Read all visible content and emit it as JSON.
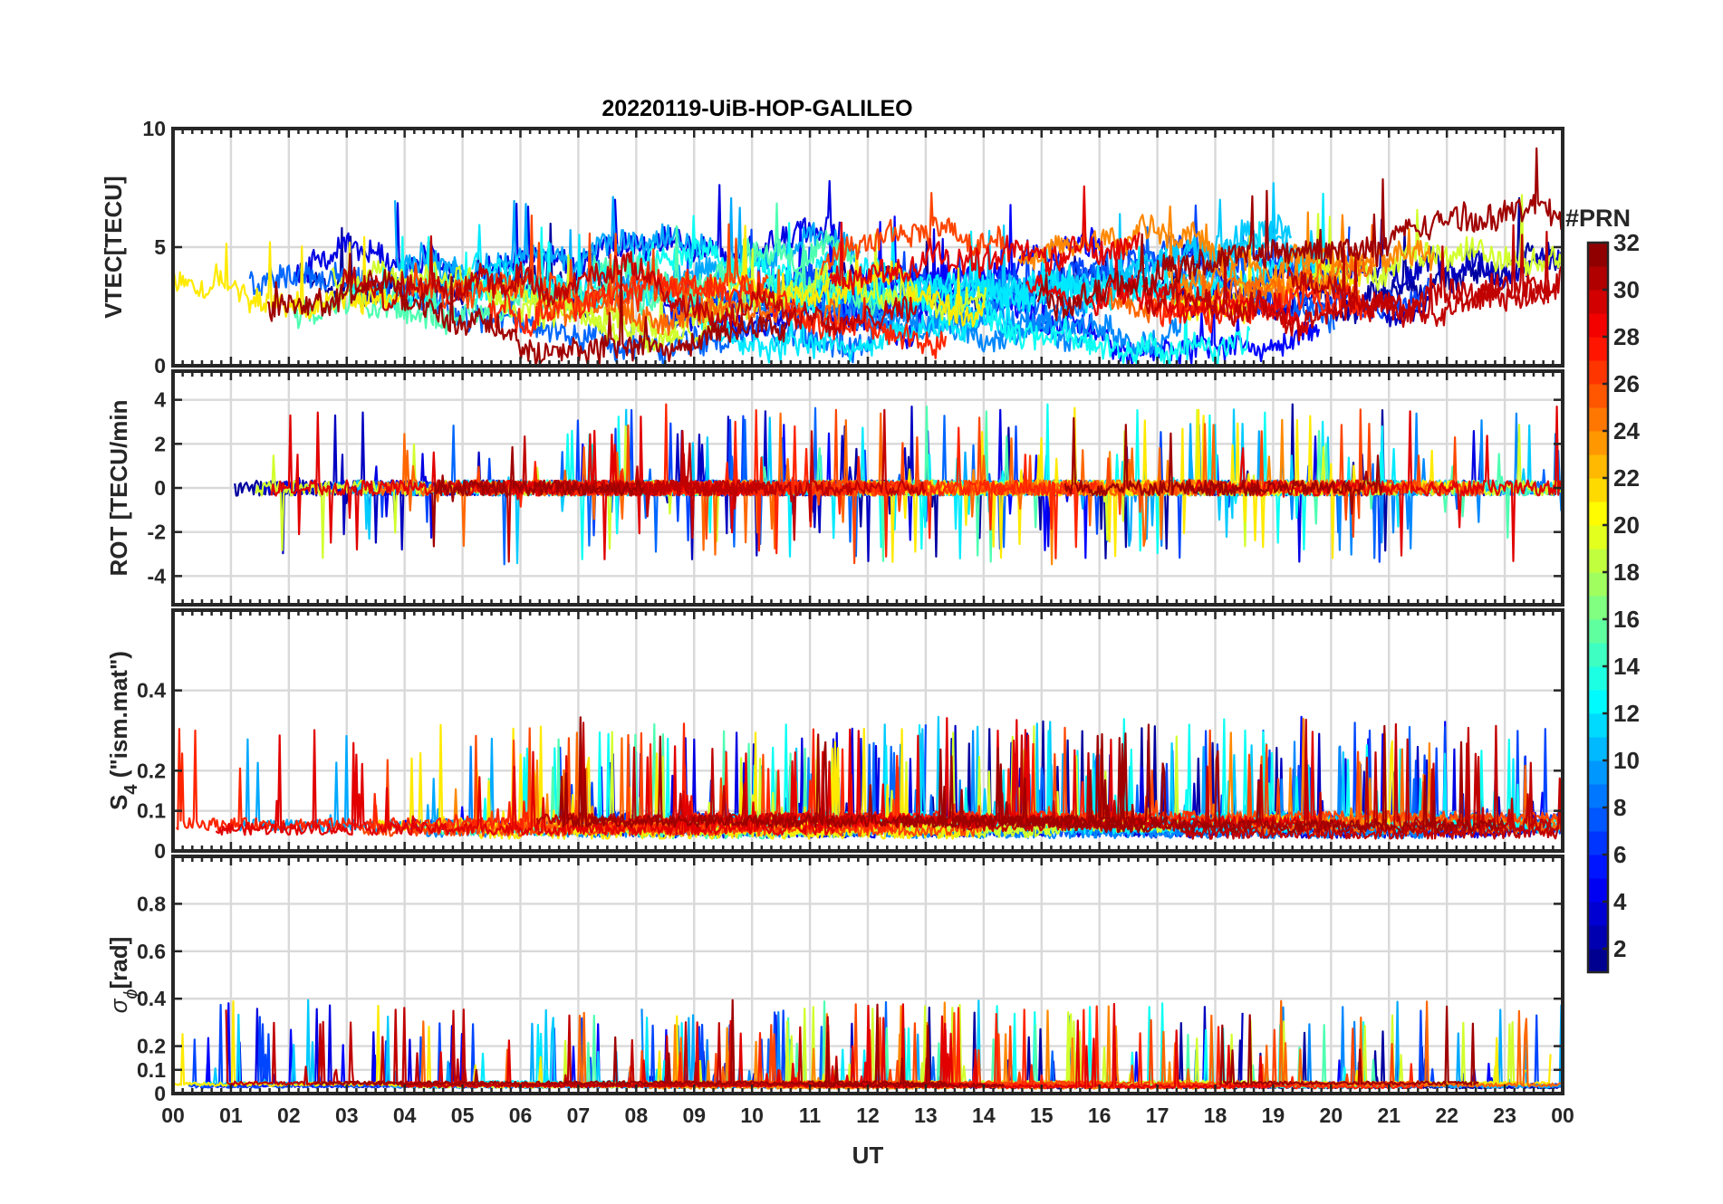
{
  "chart_data": {
    "type": "line",
    "title": "20220119-UiB-HOP-GALILEO",
    "xlabel": "UT",
    "x_tick_labels": [
      "00",
      "01",
      "02",
      "03",
      "04",
      "05",
      "06",
      "07",
      "08",
      "09",
      "10",
      "11",
      "12",
      "13",
      "14",
      "15",
      "16",
      "17",
      "18",
      "19",
      "20",
      "21",
      "22",
      "23",
      "00"
    ],
    "xlim": [
      0,
      24
    ],
    "grid": true,
    "panels": [
      {
        "id": "vtec",
        "ylabel": "VTEC[TECU]",
        "ylim": [
          0,
          10
        ],
        "yticks": [
          0,
          5,
          10
        ],
        "ytick_labels": [
          "0",
          "5",
          "10"
        ],
        "base": 3.3,
        "spread": 1.2,
        "noise": 1.0,
        "spikeProb": 0.002,
        "spikeMag": 3.0,
        "kind": "level",
        "floor": 0.0
      },
      {
        "id": "rot",
        "ylabel": "ROT [TECU/min",
        "ylim": [
          -5.3,
          5.3
        ],
        "yticks": [
          -4,
          -2,
          0,
          2,
          4
        ],
        "ytick_labels": [
          "-4",
          "-2",
          "0",
          "2",
          "4"
        ],
        "base": 0.0,
        "spread": 0.0,
        "noise": 0.35,
        "spikeProb": 0.004,
        "spikeMag": 3.5,
        "kind": "centered",
        "floor": -99
      },
      {
        "id": "s4",
        "ylabel_main": "S",
        "ylabel_sub": "4",
        "ylabel_rest": " (\"ism.mat\")",
        "ylim": [
          0,
          0.6
        ],
        "yticks": [
          0,
          0.1,
          0.2,
          0.4
        ],
        "ytick_labels": [
          "0",
          "0.1",
          "0.2",
          "0.4"
        ],
        "base": 0.05,
        "spread": 0.02,
        "noise": 0.03,
        "spikeProb": 0.004,
        "spikeMag": 0.25,
        "kind": "positive",
        "floor": 0.01
      },
      {
        "id": "sigma",
        "ylabel_main": "σ",
        "ylabel_sub": "ϕ",
        "ylabel_rest": "[rad]",
        "ylim": [
          0,
          1.0
        ],
        "yticks": [
          0,
          0.1,
          0.2,
          0.4,
          0.6,
          0.8
        ],
        "ytick_labels": [
          "0",
          "0.1",
          "0.2",
          "0.4",
          "0.6",
          "0.8"
        ],
        "base": 0.03,
        "spread": 0.01,
        "noise": 0.015,
        "spikeProb": 0.003,
        "spikeMag": 0.35,
        "kind": "positive",
        "floor": 0.0
      }
    ],
    "series_prn": [
      2,
      3,
      4,
      5,
      7,
      8,
      9,
      10,
      11,
      12,
      13,
      15,
      19,
      21,
      24,
      25,
      26,
      27,
      29,
      30,
      31
    ],
    "colorbar": {
      "label": "#PRN",
      "range": [
        1,
        32
      ],
      "ticks": [
        2,
        4,
        6,
        8,
        10,
        12,
        14,
        16,
        18,
        20,
        22,
        24,
        26,
        28,
        30,
        32
      ],
      "colormap": "jet"
    }
  }
}
